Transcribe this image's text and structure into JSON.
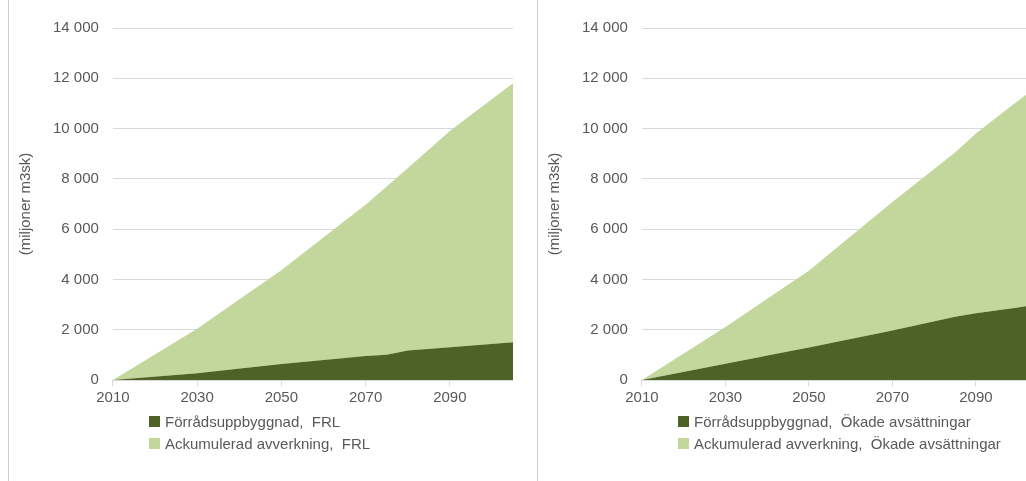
{
  "chart_data": [
    {
      "type": "area",
      "ylabel": "(miljoner m3sk)",
      "stacked": true,
      "grid": "y",
      "legend": "bottom",
      "x": [
        2010,
        2030,
        2050,
        2070,
        2075,
        2080,
        2090,
        2105
      ],
      "xlim": [
        2010,
        2105
      ],
      "xticks": [
        2010,
        2030,
        2050,
        2070,
        2090
      ],
      "ylim": [
        0,
        14000
      ],
      "yticks": [
        0,
        {
          "value": 2000,
          "label": "2 000"
        },
        {
          "value": 4000,
          "label": "4 000"
        },
        {
          "value": 6000,
          "label": "6 000"
        },
        {
          "value": 8000,
          "label": "8 000"
        },
        {
          "value": 10000,
          "label": "10 000"
        },
        {
          "value": 12000,
          "label": "12 000"
        },
        {
          "value": 14000,
          "label": "14 000"
        }
      ],
      "series": [
        {
          "name": "Förrådsuppbyggnad,  FRL",
          "color": "#4e6228",
          "values": [
            0,
            270,
            640,
            950,
            1000,
            1170,
            1300,
            1500
          ]
        },
        {
          "name": "Ackumulerad avverkning,  FRL",
          "color": "#c3d69b",
          "values": [
            0,
            1770,
            3730,
            6020,
            6700,
            7250,
            8600,
            10300
          ]
        }
      ]
    },
    {
      "type": "area",
      "ylabel": "(miljoner m3sk)",
      "stacked": true,
      "grid": "y",
      "legend": "bottom",
      "x": [
        2010,
        2030,
        2050,
        2070,
        2085,
        2090,
        2102
      ],
      "xlim": [
        2010,
        2102
      ],
      "xticks": [
        2010,
        2030,
        2050,
        2070,
        2090
      ],
      "ylim": [
        0,
        14000
      ],
      "yticks": [
        0,
        {
          "value": 2000,
          "label": "2 000"
        },
        {
          "value": 4000,
          "label": "4 000"
        },
        {
          "value": 6000,
          "label": "6 000"
        },
        {
          "value": 8000,
          "label": "8 000"
        },
        {
          "value": 10000,
          "label": "10 000"
        },
        {
          "value": 12000,
          "label": "12 000"
        },
        {
          "value": 14000,
          "label": "14 000"
        }
      ],
      "series": [
        {
          "name": "Förrådsuppbyggnad,  Ökade avsättningar",
          "color": "#4e6228",
          "values": [
            0,
            650,
            1290,
            1970,
            2520,
            2650,
            2930
          ]
        },
        {
          "name": "Ackumulerad avverkning,  Ökade avsättningar",
          "color": "#c3d69b",
          "values": [
            0,
            1460,
            3060,
            5105,
            6530,
            7150,
            8420
          ]
        }
      ]
    }
  ]
}
